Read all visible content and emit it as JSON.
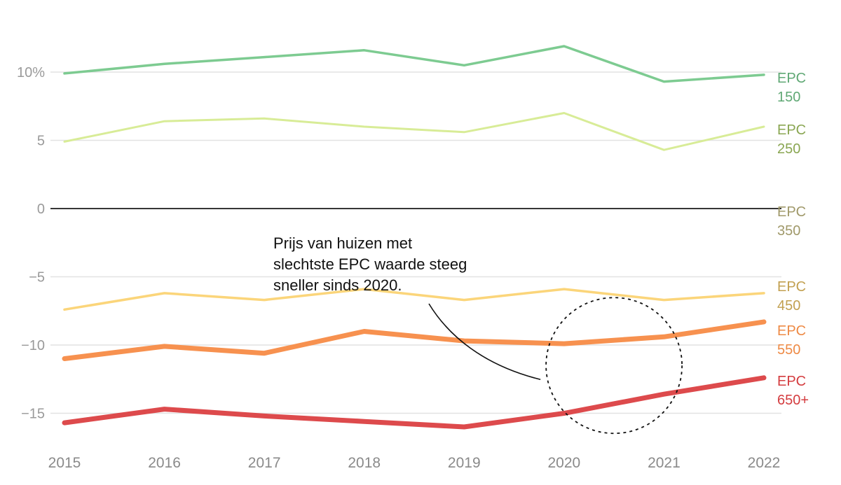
{
  "chart_data": {
    "type": "line",
    "title": "",
    "xlabel": "",
    "ylabel": "",
    "x": [
      2015,
      2016,
      2017,
      2018,
      2019,
      2020,
      2021,
      2022
    ],
    "ylim": [
      -17,
      12.5
    ],
    "yticks": [
      {
        "value": 10,
        "label": "10%"
      },
      {
        "value": 5,
        "label": "5"
      },
      {
        "value": 0,
        "label": "0"
      },
      {
        "value": -5,
        "label": "−5"
      },
      {
        "value": -10,
        "label": "−10"
      },
      {
        "value": -15,
        "label": "−15"
      }
    ],
    "xticks": [
      "2015",
      "2016",
      "2017",
      "2018",
      "2019",
      "2020",
      "2021",
      "2022"
    ],
    "grid": true,
    "zero_line_color": "#1a1a1a",
    "series": [
      {
        "name": "EPC 150",
        "label_lines": [
          "EPC",
          "150"
        ],
        "color": "#7dcb91",
        "label_color": "#5fa874",
        "stroke": 3.5,
        "values": [
          9.9,
          10.6,
          11.1,
          11.6,
          10.5,
          11.9,
          9.3,
          9.8
        ]
      },
      {
        "name": "EPC 250",
        "label_lines": [
          "EPC",
          "250"
        ],
        "color": "#d8ec97",
        "label_color": "#8aa652",
        "stroke": 3,
        "values": [
          4.9,
          6.4,
          6.6,
          6.0,
          5.6,
          7.0,
          4.3,
          6.0
        ]
      },
      {
        "name": "EPC 350",
        "label_lines": [
          "EPC",
          "350"
        ],
        "color": "#e6df84",
        "label_color": "#a0996a",
        "stroke": 2,
        "values": [
          0,
          0,
          0,
          0,
          0,
          0,
          0,
          0
        ]
      },
      {
        "name": "EPC 450",
        "label_lines": [
          "EPC",
          "450"
        ],
        "color": "#fbd57a",
        "label_color": "#c2a050",
        "stroke": 3.5,
        "values": [
          -7.4,
          -6.2,
          -6.7,
          -5.9,
          -6.7,
          -5.9,
          -6.7,
          -6.2
        ]
      },
      {
        "name": "EPC 550",
        "label_lines": [
          "EPC",
          "550"
        ],
        "color": "#f7914f",
        "label_color": "#ee8a45",
        "stroke": 7,
        "values": [
          -11.0,
          -10.1,
          -10.6,
          -9.0,
          -9.7,
          -9.9,
          -9.4,
          -8.3
        ]
      },
      {
        "name": "EPC 650+",
        "label_lines": [
          "EPC",
          "650+"
        ],
        "color": "#dd4a4c",
        "label_color": "#d43c3f",
        "stroke": 7,
        "values": [
          -15.7,
          -14.7,
          -15.2,
          -15.6,
          -16.0,
          -15.0,
          -13.6,
          -12.4
        ]
      }
    ],
    "annotation": {
      "lines": [
        "Prijs van huizen met",
        "slechtste EPC waarde steeg",
        "sneller sinds 2020."
      ],
      "highlight_year": 2020.5,
      "highlight_value": -11.5
    }
  }
}
